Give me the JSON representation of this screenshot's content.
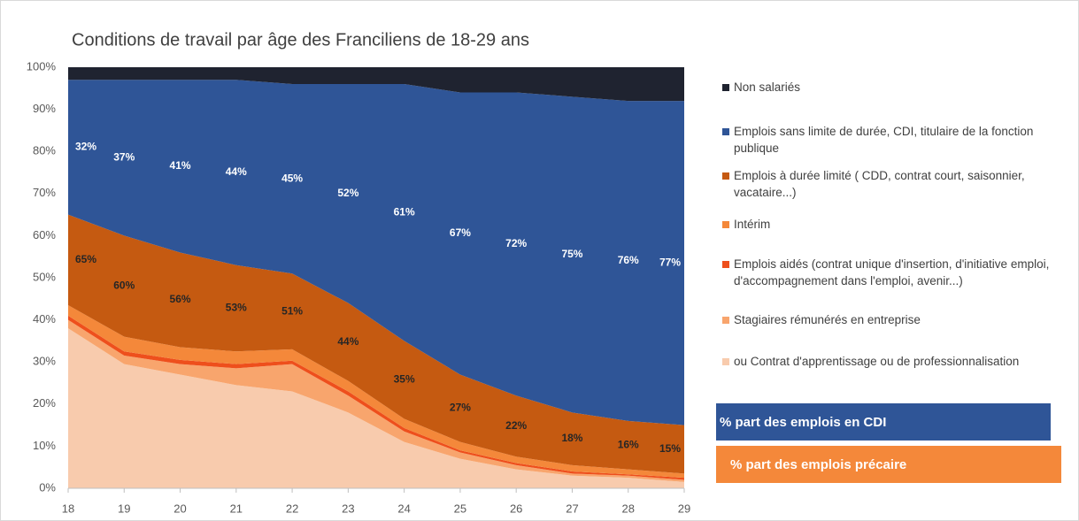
{
  "chart_data": {
    "type": "stacked_area",
    "title": "Conditions de travail par âge des Franciliens de 18-29 ans",
    "x": [
      18,
      19,
      20,
      21,
      22,
      23,
      24,
      25,
      26,
      27,
      28,
      29
    ],
    "xlim": [
      18,
      29
    ],
    "xticks": [
      18,
      19,
      20,
      21,
      22,
      23,
      24,
      25,
      26,
      27,
      28,
      29
    ],
    "ylim": [
      0,
      100
    ],
    "yticks": [
      {
        "value": 0,
        "label": "0%"
      },
      {
        "value": 10,
        "label": "10%"
      },
      {
        "value": 20,
        "label": "20%"
      },
      {
        "value": 30,
        "label": "30%"
      },
      {
        "value": 40,
        "label": "40%"
      },
      {
        "value": 50,
        "label": "50%"
      },
      {
        "value": 60,
        "label": "60%"
      },
      {
        "value": 70,
        "label": "70%"
      },
      {
        "value": 80,
        "label": "80%"
      },
      {
        "value": 90,
        "label": "90%"
      },
      {
        "value": 100,
        "label": "100%"
      }
    ],
    "grid": false,
    "legend": "right",
    "series": [
      {
        "name": "ou Contrat d'apprentissage ou de professionnalisation",
        "color": "#f8cbad",
        "values": [
          38,
          29.5,
          27,
          24.5,
          23,
          18,
          11,
          7,
          4.5,
          3,
          2.5,
          1.5
        ]
      },
      {
        "name": "Stagiaires rémunérés en entreprise",
        "color": "#f8a56d",
        "values": [
          2,
          2,
          2.5,
          4,
          6.5,
          4,
          2.5,
          1.5,
          1,
          0.5,
          0.5,
          0.5
        ]
      },
      {
        "name": "Emplois aidés (contrat unique d'insertion, d'initiative emploi, d'accompagnement dans l'emploi, avenir...)",
        "color": "#ee4f1c",
        "values": [
          1,
          1,
          1,
          1,
          0.8,
          1,
          0.8,
          0.5,
          0.5,
          0.5,
          0.3,
          0.5
        ]
      },
      {
        "name": "Intérim",
        "color": "#f4883a",
        "values": [
          2.5,
          3.5,
          3,
          3,
          2.7,
          2.5,
          2.2,
          2,
          1.5,
          1.5,
          1.2,
          1
        ]
      },
      {
        "name": "Emplois à durée limité ( CDD, contrat court, saisonnier, vacataire...)",
        "color": "#c55a11",
        "values": [
          21.5,
          24,
          22.5,
          20.5,
          18,
          18.5,
          18.5,
          16,
          14.5,
          12.5,
          11.5,
          11.5
        ]
      },
      {
        "name": "Emplois sans limite de durée, CDI, titulaire de la fonction publique",
        "color": "#2f5597",
        "values": [
          32,
          37,
          41,
          44,
          45,
          52,
          61,
          67,
          72,
          75,
          76,
          77
        ],
        "value_labels": [
          "32%",
          "37%",
          "41%",
          "44%",
          "45%",
          "52%",
          "61%",
          "67%",
          "72%",
          "75%",
          "76%",
          "77%"
        ]
      },
      {
        "name": "Non salariés",
        "color": "#1f2330",
        "values": [
          3,
          3,
          3,
          3,
          4,
          4,
          4,
          6,
          6,
          7,
          8,
          8
        ]
      }
    ],
    "precarious_share": {
      "values": [
        65,
        60,
        56,
        53,
        51,
        44,
        35,
        27,
        22,
        18,
        16,
        15
      ],
      "value_labels": [
        "65%",
        "60%",
        "56%",
        "53%",
        "51%",
        "44%",
        "35%",
        "27%",
        "22%",
        "18%",
        "16%",
        "15%"
      ]
    },
    "boxes": [
      {
        "text": "% part des emplois en CDI",
        "color": "#2f5597"
      },
      {
        "text": "% part des emplois précaire",
        "color": "#f4883a"
      }
    ]
  }
}
